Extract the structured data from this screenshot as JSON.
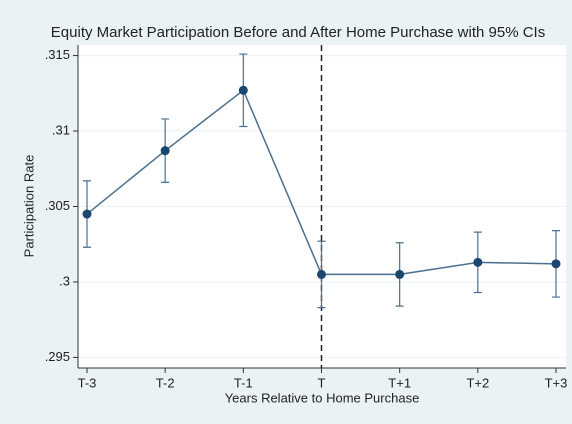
{
  "chart_data": {
    "type": "line",
    "title": "Equity Market Participation Before and After Home Purchase with 95% CIs",
    "x_label": "Years Relative to Home Purchase",
    "y_label": "Participation Rate",
    "categories": [
      "T-3",
      "T-2",
      "T-1",
      "T",
      "T+1",
      "T+2",
      "T+3"
    ],
    "series": [
      {
        "name": "Participation Rate",
        "color": "#1a476f",
        "values": [
          0.3045,
          0.3087,
          0.3127,
          0.3005,
          0.3005,
          0.3013,
          0.3012
        ],
        "errors": [
          0.0022,
          0.0021,
          0.0024,
          0.0022,
          0.0021,
          0.002,
          0.0022
        ]
      }
    ],
    "ylim": [
      0.2943,
      0.3157
    ],
    "yticks": [
      {
        "value": 0.295,
        "label": ".295"
      },
      {
        "value": 0.3,
        "label": ".3"
      },
      {
        "value": 0.305,
        "label": ".305"
      },
      {
        "value": 0.31,
        "label": ".31"
      },
      {
        "value": 0.315,
        "label": ".315"
      }
    ],
    "grid": true,
    "reference_line": {
      "x": "T",
      "style": "dashed"
    }
  }
}
